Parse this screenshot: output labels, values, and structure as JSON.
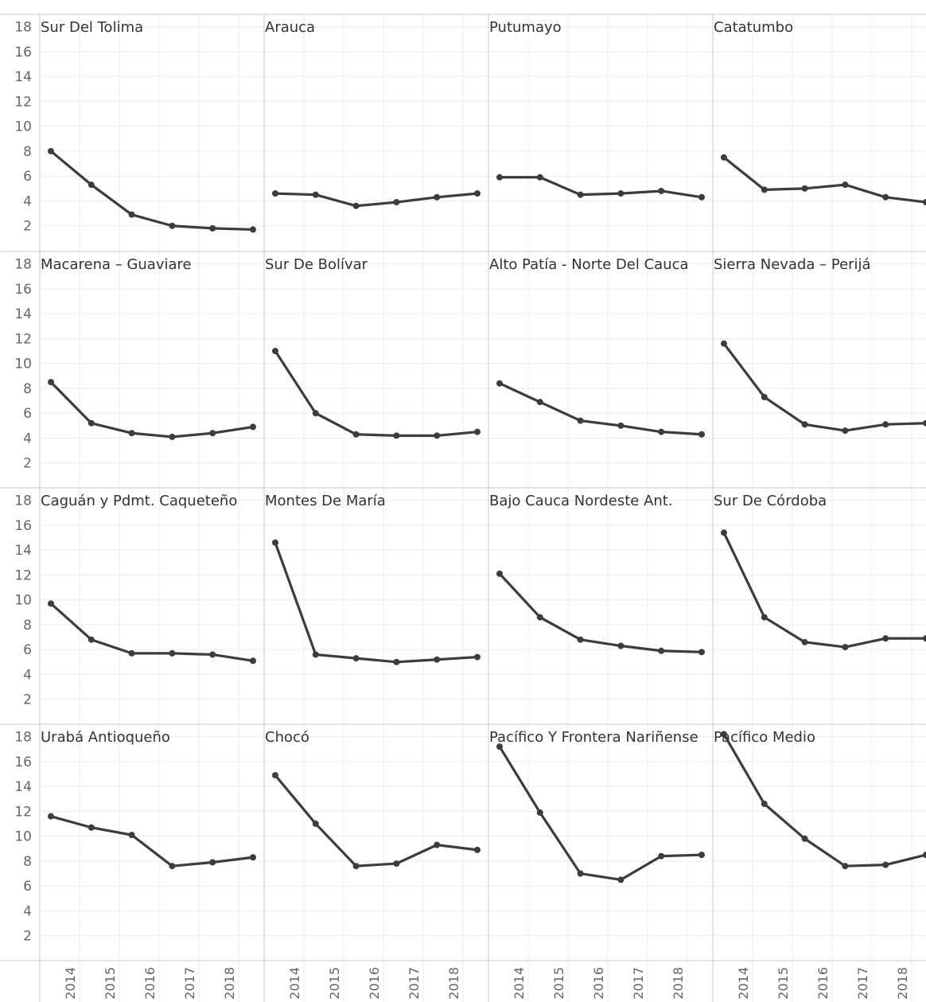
{
  "chart_data": {
    "type": "line",
    "x": [
      "2013",
      "2014",
      "2015",
      "2016",
      "2017",
      "2018"
    ],
    "x_tick_labels": [
      "2014",
      "2015",
      "2016",
      "2017",
      "2018"
    ],
    "y_tick_labels": [
      "2",
      "4",
      "6",
      "8",
      "10",
      "12",
      "14",
      "16",
      "18"
    ],
    "ylim": [
      0,
      19
    ],
    "grid": true,
    "line_color": "#3c3c3c",
    "grid_color": "#ececec",
    "border_color": "#c8c8c8",
    "panels": [
      {
        "name": "Sur Del Tolima",
        "values": [
          8.0,
          5.3,
          2.9,
          2.0,
          1.8,
          1.7
        ]
      },
      {
        "name": "Arauca",
        "values": [
          4.6,
          4.5,
          3.6,
          3.9,
          4.3,
          4.6
        ]
      },
      {
        "name": "Putumayo",
        "values": [
          5.9,
          5.9,
          4.5,
          4.6,
          4.8,
          4.3
        ]
      },
      {
        "name": "Catatumbo",
        "values": [
          7.5,
          4.9,
          5.0,
          5.3,
          4.3,
          3.9
        ]
      },
      {
        "name": "Macarena – Guaviare",
        "values": [
          8.5,
          5.2,
          4.4,
          4.1,
          4.4,
          4.9
        ]
      },
      {
        "name": "Sur De Bolívar",
        "values": [
          11.0,
          6.0,
          4.3,
          4.2,
          4.2,
          4.5
        ]
      },
      {
        "name": "Alto Patía - Norte Del Cauca",
        "values": [
          8.4,
          6.9,
          5.4,
          5.0,
          4.5,
          4.3
        ]
      },
      {
        "name": "Sierra Nevada – Perijá",
        "values": [
          11.6,
          7.3,
          5.1,
          4.6,
          5.1,
          5.2
        ]
      },
      {
        "name": "Caguán y Pdmt. Caqueteño",
        "values": [
          9.7,
          6.8,
          5.7,
          5.7,
          5.6,
          5.1
        ]
      },
      {
        "name": "Montes De María",
        "values": [
          14.6,
          5.6,
          5.3,
          5.0,
          5.2,
          5.4
        ]
      },
      {
        "name": "Bajo Cauca Nordeste Ant.",
        "values": [
          12.1,
          8.6,
          6.8,
          6.3,
          5.9,
          5.8
        ]
      },
      {
        "name": "Sur De Córdoba",
        "values": [
          15.4,
          8.6,
          6.6,
          6.2,
          6.9,
          6.9
        ]
      },
      {
        "name": "Urabá Antioqueño",
        "values": [
          11.6,
          10.7,
          10.1,
          7.6,
          7.9,
          8.3
        ]
      },
      {
        "name": "Chocó",
        "values": [
          14.9,
          11.0,
          7.6,
          7.8,
          9.3,
          8.9
        ]
      },
      {
        "name": "Pacífico Y Frontera Nariñense",
        "values": [
          17.2,
          11.9,
          7.0,
          6.5,
          8.4,
          8.5
        ]
      },
      {
        "name": "Pacífico Medio",
        "values": [
          18.2,
          12.6,
          9.8,
          7.6,
          7.7,
          8.5
        ]
      }
    ]
  }
}
